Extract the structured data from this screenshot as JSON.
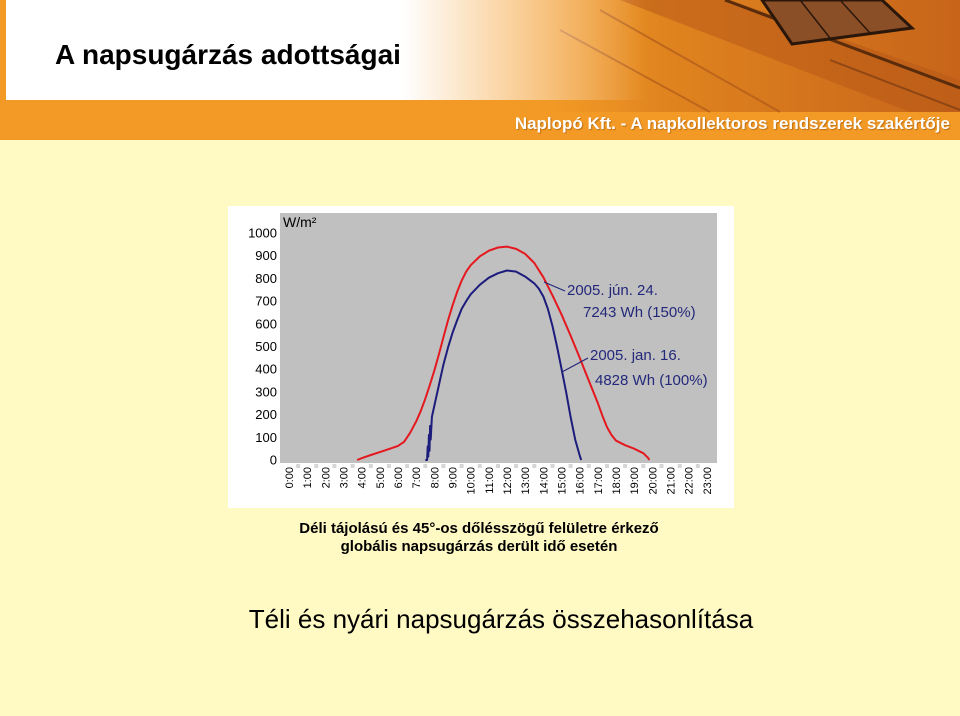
{
  "header": {
    "title": "A napsugárzás adottságai",
    "tagline": "Naplopó Kft. - A napkollektoros rendszerek szakértője"
  },
  "chart_data": {
    "type": "line",
    "ylabel": "W/m²",
    "ylim": [
      0,
      1000
    ],
    "y_ticks": [
      1000,
      900,
      800,
      700,
      600,
      500,
      400,
      300,
      200,
      100,
      0
    ],
    "x_ticks": [
      "0:00",
      "1:00",
      "2:00",
      "3:00",
      "4:00",
      "5:00",
      "6:00",
      "7:00",
      "8:00",
      "9:00",
      "10:00",
      "11:00",
      "12:00",
      "13:00",
      "14:00",
      "15:00",
      "16:00",
      "17:00",
      "18:00",
      "19:00",
      "20:00",
      "21:00",
      "22:00",
      "23:00"
    ],
    "grid": false,
    "plot_background": "#C0C0C0",
    "series": [
      {
        "name": "2005. jún. 24.",
        "note": "7243 Wh (150%)",
        "color": "#E4181E",
        "points": [
          [
            "3:45",
            0
          ],
          [
            "4:00",
            8
          ],
          [
            "4:30",
            22
          ],
          [
            "5:00",
            35
          ],
          [
            "5:30",
            48
          ],
          [
            "6:00",
            62
          ],
          [
            "6:20",
            80
          ],
          [
            "6:40",
            120
          ],
          [
            "7:00",
            170
          ],
          [
            "7:15",
            215
          ],
          [
            "7:30",
            270
          ],
          [
            "7:45",
            330
          ],
          [
            "8:00",
            395
          ],
          [
            "8:15",
            465
          ],
          [
            "8:30",
            540
          ],
          [
            "8:45",
            615
          ],
          [
            "9:00",
            680
          ],
          [
            "9:15",
            740
          ],
          [
            "9:30",
            790
          ],
          [
            "9:45",
            830
          ],
          [
            "10:00",
            858
          ],
          [
            "10:30",
            897
          ],
          [
            "11:00",
            922
          ],
          [
            "11:30",
            936
          ],
          [
            "12:00",
            940
          ],
          [
            "12:30",
            930
          ],
          [
            "13:00",
            908
          ],
          [
            "13:30",
            868
          ],
          [
            "14:00",
            805
          ],
          [
            "14:30",
            725
          ],
          [
            "15:00",
            640
          ],
          [
            "15:30",
            548
          ],
          [
            "16:00",
            450
          ],
          [
            "16:30",
            350
          ],
          [
            "17:00",
            250
          ],
          [
            "17:15",
            195
          ],
          [
            "17:30",
            145
          ],
          [
            "17:45",
            110
          ],
          [
            "18:00",
            85
          ],
          [
            "18:30",
            65
          ],
          [
            "19:00",
            50
          ],
          [
            "19:30",
            30
          ],
          [
            "19:45",
            10
          ],
          [
            "19:50",
            0
          ]
        ]
      },
      {
        "name": "2005. jan. 16.",
        "note": "4828 Wh (100%)",
        "color": "#1C1C7C",
        "points": [
          [
            "7:30",
            0
          ],
          [
            "7:36",
            0
          ],
          [
            "7:38",
            60
          ],
          [
            "7:40",
            15
          ],
          [
            "7:42",
            110
          ],
          [
            "7:44",
            40
          ],
          [
            "7:46",
            150
          ],
          [
            "7:48",
            90
          ],
          [
            "7:52",
            190
          ],
          [
            "8:00",
            240
          ],
          [
            "8:15",
            330
          ],
          [
            "8:30",
            420
          ],
          [
            "8:45",
            495
          ],
          [
            "9:00",
            560
          ],
          [
            "9:15",
            615
          ],
          [
            "9:30",
            665
          ],
          [
            "9:45",
            700
          ],
          [
            "10:00",
            730
          ],
          [
            "10:30",
            772
          ],
          [
            "11:00",
            803
          ],
          [
            "11:30",
            823
          ],
          [
            "12:00",
            835
          ],
          [
            "12:30",
            830
          ],
          [
            "13:00",
            808
          ],
          [
            "13:30",
            778
          ],
          [
            "13:45",
            755
          ],
          [
            "14:00",
            720
          ],
          [
            "14:15",
            665
          ],
          [
            "14:30",
            590
          ],
          [
            "14:45",
            500
          ],
          [
            "15:00",
            400
          ],
          [
            "15:15",
            300
          ],
          [
            "15:30",
            190
          ],
          [
            "15:45",
            90
          ],
          [
            "16:00",
            20
          ],
          [
            "16:05",
            0
          ]
        ]
      }
    ]
  },
  "caption": {
    "line1": "Déli tájolású és 45°-os dőlésszögű felületre érkező",
    "line2": "globális napsugárzás derült idő esetén"
  },
  "footer_title": "Téli és nyári napsugárzás összehasonlítása",
  "colors": {
    "background": "#FFF9C4",
    "header_orange": "#F39A26",
    "annotation_text": "#23287A"
  }
}
